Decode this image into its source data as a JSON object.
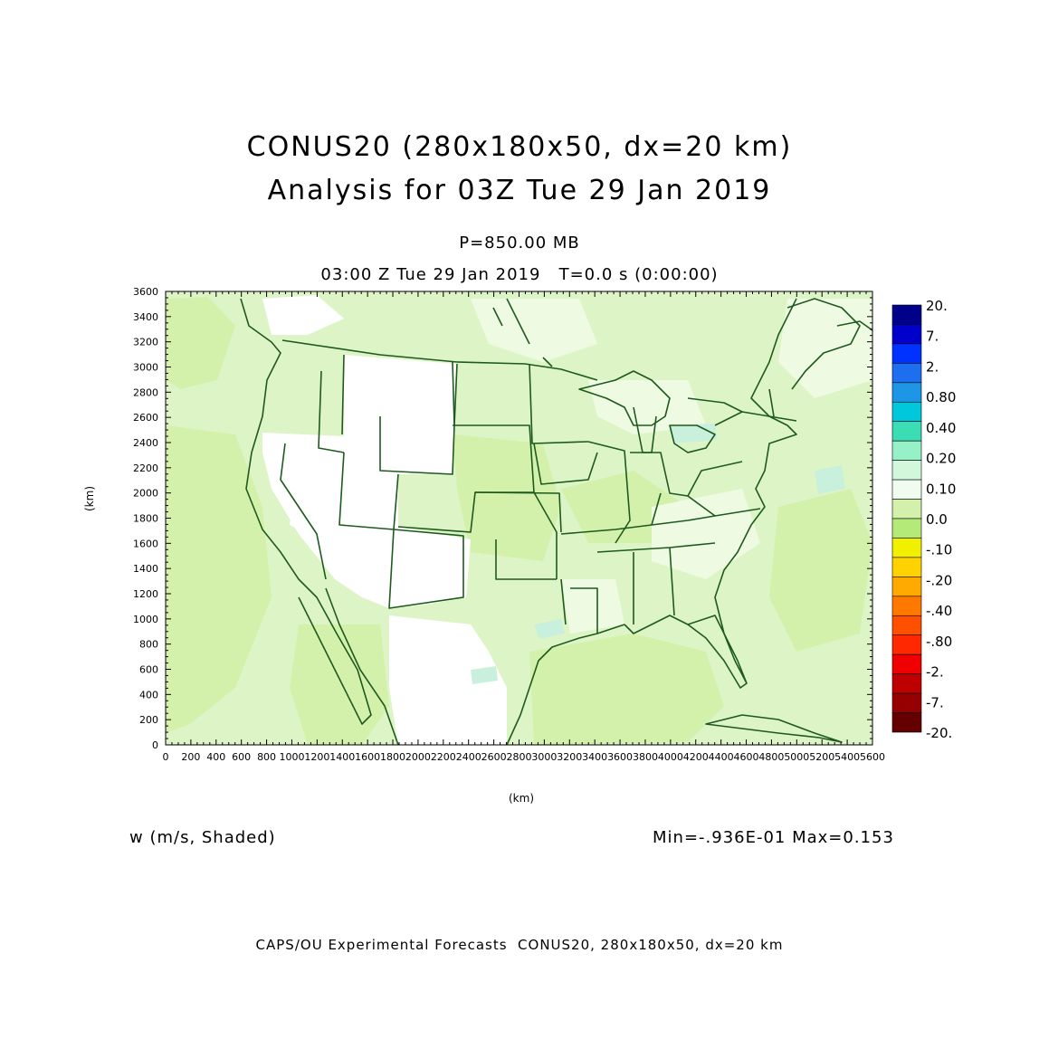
{
  "title": {
    "line1": "CONUS20 (280x180x50, dx=20 km)",
    "line2": "Analysis for 03Z Tue 29 Jan 2019"
  },
  "subtitle": {
    "level": "P=850.00 MB",
    "time": "03:00 Z Tue 29 Jan 2019   T=0.0 s (0:00:00)"
  },
  "axes": {
    "x_unit": "(km)",
    "y_unit": "(km)"
  },
  "variable_label": "w (m/s, Shaded)",
  "min_max": "Min=-.936E-01 Max=0.153",
  "footer": "CAPS/OU Experimental Forecasts  CONUS20, 280x180x50, dx=20 km",
  "colors": {
    "map_background": "#ddf5c6",
    "land_bright": "#d4f1ac",
    "boundary": "#1e5a1e",
    "white_patch": "#ffffff"
  },
  "chart_data": {
    "type": "heatmap",
    "title": "CONUS20 (280x180x50, dx=20 km)",
    "xlabel": "(km)",
    "ylabel": "(km)",
    "xlim": [
      0,
      5600
    ],
    "ylim": [
      0,
      3600
    ],
    "x_ticks": [
      "0",
      "200",
      "400",
      "600",
      "800",
      "1000",
      "1200",
      "1400",
      "1600",
      "1800",
      "2000",
      "2200",
      "2400",
      "2600",
      "2800",
      "3000",
      "3200",
      "3400",
      "3600",
      "3800",
      "4000",
      "4200",
      "4400",
      "4600",
      "4800",
      "5000",
      "5200",
      "5400",
      "5600"
    ],
    "y_ticks": [
      "0",
      "200",
      "400",
      "600",
      "800",
      "1000",
      "1200",
      "1400",
      "1600",
      "1800",
      "2000",
      "2200",
      "2400",
      "2600",
      "2800",
      "3000",
      "3200",
      "3400",
      "3600"
    ],
    "colorbar": {
      "labels": [
        "20.",
        "7.",
        "2.",
        "0.80",
        "0.40",
        "0.20",
        "0.10",
        "0.0",
        "-.10",
        "-.20",
        "-.40",
        "-.80",
        "-2.",
        "-7.",
        "-20."
      ],
      "colors": [
        "#00008b",
        "#0000cd",
        "#0032ff",
        "#1e6ef0",
        "#1e96e6",
        "#00c8dc",
        "#3cdcb4",
        "#96f0c8",
        "#d2f8dc",
        "#f0fcf0",
        "#d4f1ac",
        "#b4eb78",
        "#f0f000",
        "#ffd200",
        "#ffaa00",
        "#ff7800",
        "#ff5000",
        "#ff2800",
        "#f00000",
        "#be0000",
        "#960000",
        "#640000"
      ]
    },
    "min": -0.0936,
    "max": 0.153
  }
}
